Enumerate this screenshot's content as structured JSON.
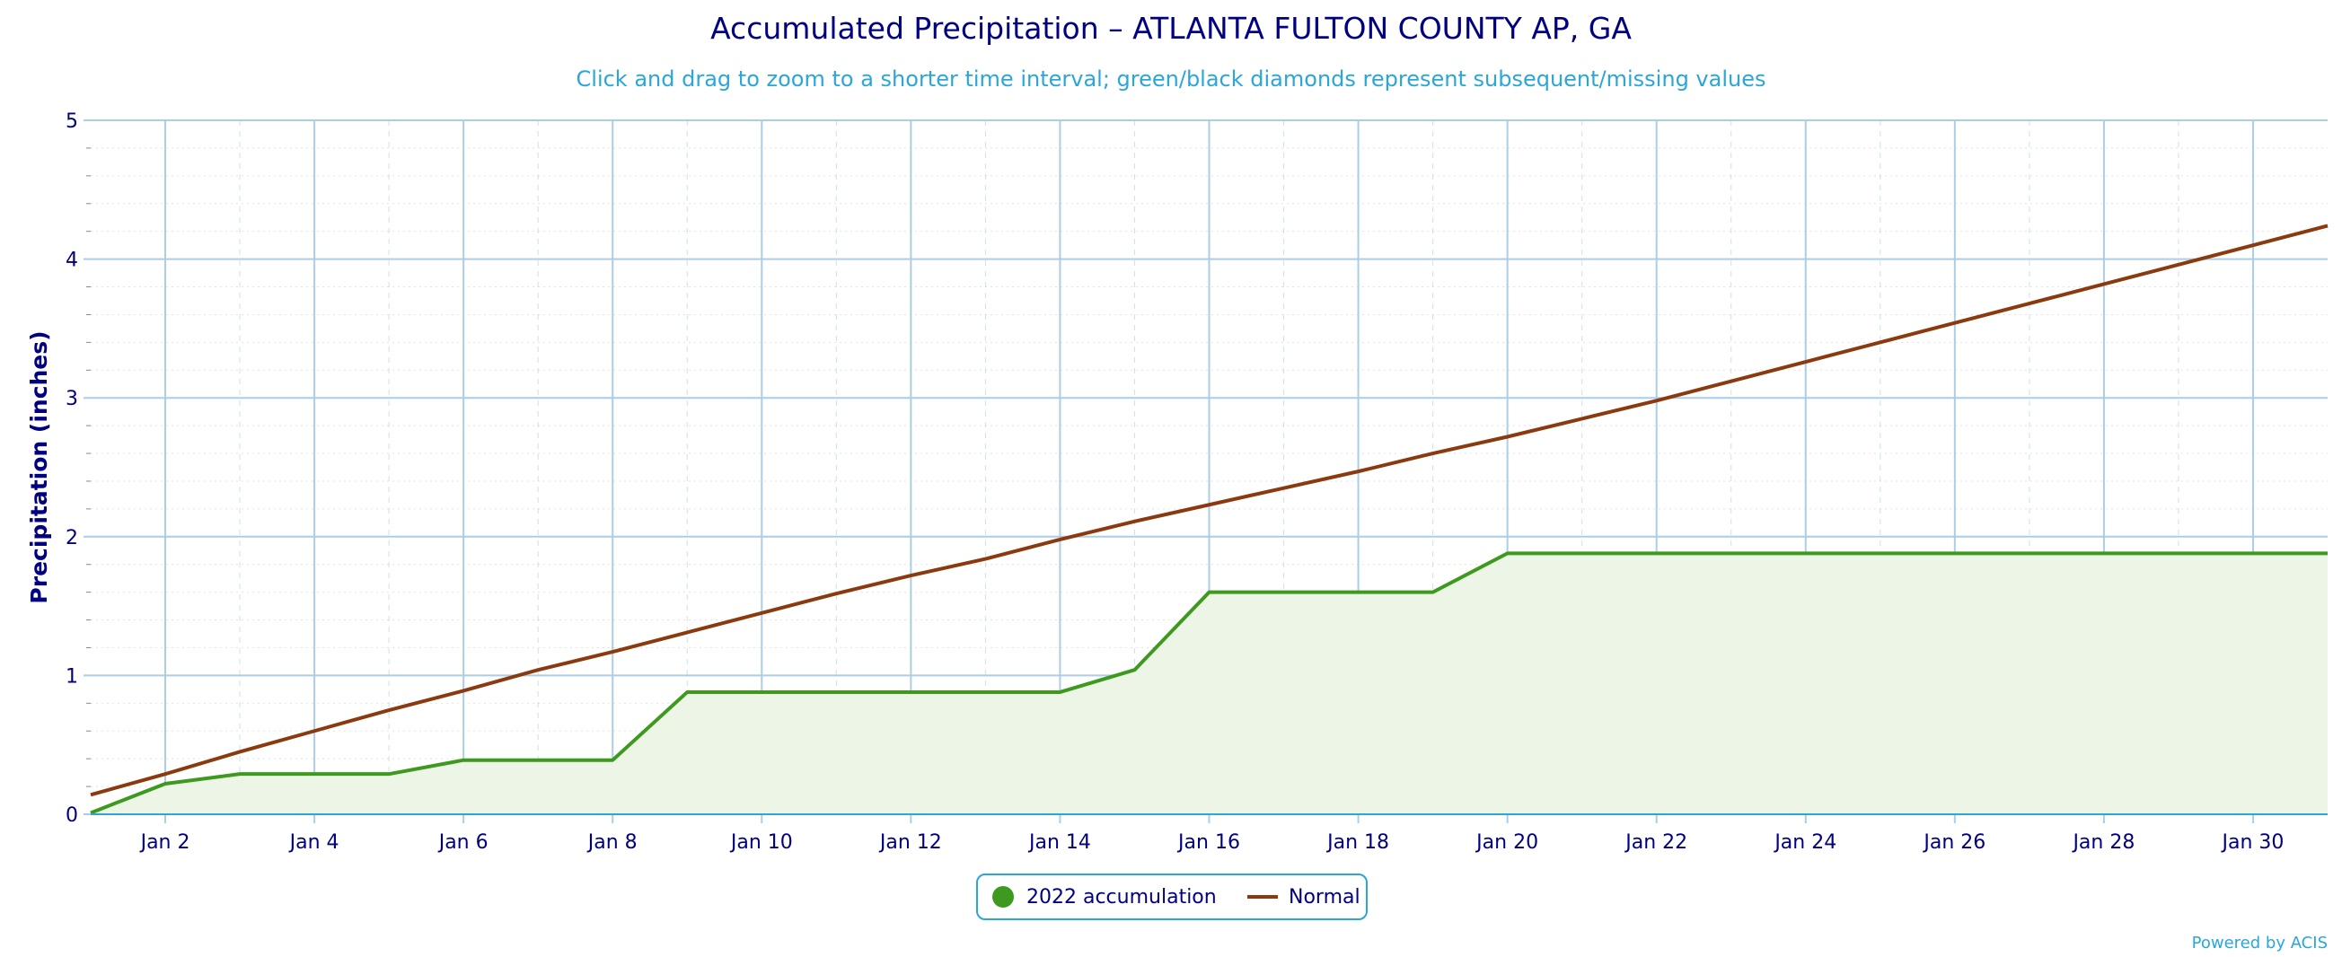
{
  "chart_data": {
    "type": "line",
    "title": "Accumulated Precipitation – ATLANTA FULTON COUNTY AP, GA",
    "subtitle": "Click and drag to zoom to a shorter time interval; green/black diamonds represent subsequent/missing values",
    "ylabel": "Precipitation (inches)",
    "xlabel": "",
    "ylim": [
      0,
      5
    ],
    "yticks": [
      0,
      1,
      2,
      3,
      4,
      5
    ],
    "x_range_days": [
      1,
      31
    ],
    "x_tick_labels": [
      "Jan 2",
      "Jan 4",
      "Jan 6",
      "Jan 8",
      "Jan 10",
      "Jan 12",
      "Jan 14",
      "Jan 16",
      "Jan 18",
      "Jan 20",
      "Jan 22",
      "Jan 24",
      "Jan 26",
      "Jan 28",
      "Jan 30"
    ],
    "x_tick_days": [
      2,
      4,
      6,
      8,
      10,
      12,
      14,
      16,
      18,
      20,
      22,
      24,
      26,
      28,
      30
    ],
    "grid": true,
    "legend_position": "bottom-center",
    "series": [
      {
        "name": "2022 accumulation",
        "color": "#3d9a1e",
        "fill": "area",
        "x": [
          1,
          2,
          3,
          4,
          5,
          6,
          7,
          8,
          9,
          10,
          11,
          12,
          13,
          14,
          15,
          16,
          17,
          18,
          19,
          20,
          21,
          22,
          23,
          24,
          25,
          26,
          27,
          28,
          29,
          30,
          31
        ],
        "y": [
          0.01,
          0.22,
          0.29,
          0.29,
          0.29,
          0.39,
          0.39,
          0.39,
          0.88,
          0.88,
          0.88,
          0.88,
          0.88,
          0.88,
          1.04,
          1.6,
          1.6,
          1.6,
          1.6,
          1.88,
          1.88,
          1.88,
          1.88,
          1.88,
          1.88,
          1.88,
          1.88,
          1.88,
          1.88,
          1.88,
          1.88
        ]
      },
      {
        "name": "Normal",
        "color": "#8b3a0f",
        "fill": "none",
        "x": [
          1,
          2,
          3,
          4,
          5,
          6,
          7,
          8,
          9,
          10,
          11,
          12,
          13,
          14,
          15,
          16,
          17,
          18,
          19,
          20,
          21,
          22,
          23,
          24,
          25,
          26,
          27,
          28,
          29,
          30,
          31
        ],
        "y": [
          0.14,
          0.29,
          0.45,
          0.6,
          0.75,
          0.89,
          1.04,
          1.17,
          1.31,
          1.45,
          1.59,
          1.72,
          1.84,
          1.98,
          2.11,
          2.23,
          2.35,
          2.47,
          2.6,
          2.72,
          2.85,
          2.98,
          3.12,
          3.26,
          3.4,
          3.54,
          3.68,
          3.82,
          3.96,
          4.1,
          4.24
        ]
      }
    ]
  },
  "credits": "Powered by ACIS",
  "colors": {
    "title": "#000080",
    "accent": "#2aa6d8",
    "grid_major": "#aacde8",
    "grid_minor": "#e2e2e2",
    "area_fill": "#edf5e6"
  }
}
